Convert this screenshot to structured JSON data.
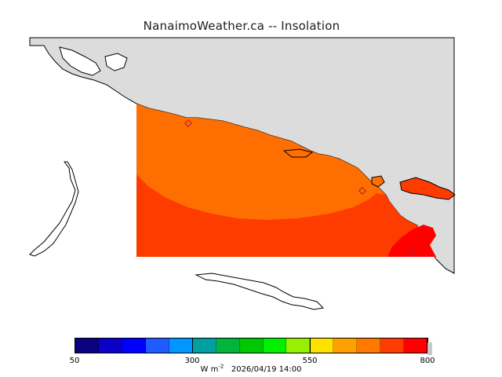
{
  "title": "NanaimoWeather.ca -- Insolation",
  "colorbar": {
    "colors": [
      "#0b0080",
      "#0a00c8",
      "#0000ff",
      "#1e5cff",
      "#0096ff",
      "#00a0a0",
      "#00b43c",
      "#00c800",
      "#00f000",
      "#96f000",
      "#ffe100",
      "#ffa000",
      "#ff7800",
      "#ff3c00",
      "#ff0000"
    ],
    "ticks": [
      {
        "value": 50,
        "label": "50"
      },
      {
        "value": 300,
        "label": "300"
      },
      {
        "value": 550,
        "label": "550"
      },
      {
        "value": 800,
        "label": "800"
      }
    ],
    "min": 50,
    "max": 800
  },
  "units_label": "W m",
  "units_exp": "-2",
  "timestamp": "2026/04/19 14:00",
  "map_colors": {
    "land": "#dcdcdc",
    "water": "#ffffff",
    "field_high": "#ff6e00",
    "field_higher": "#ff3c00",
    "field_max": "#ff0000",
    "station": "#b02020"
  }
}
